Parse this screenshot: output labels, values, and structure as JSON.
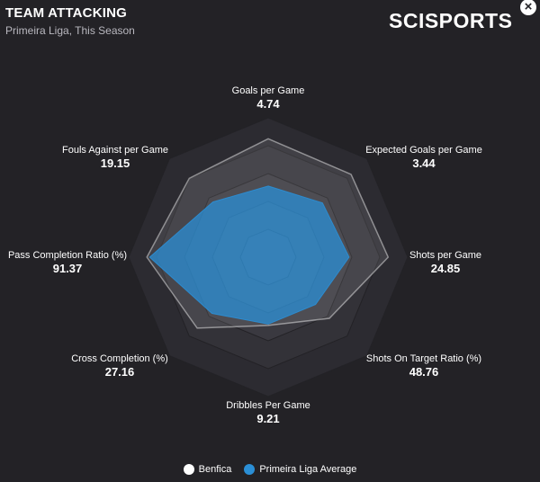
{
  "header": {
    "title": "TEAM ATTACKING",
    "subtitle": "Primeira Liga, This Season",
    "logo": "SCISPORTS",
    "close_icon": "×"
  },
  "chart_data": {
    "type": "radar",
    "axes": [
      {
        "label": "Goals per Game",
        "value": "4.74"
      },
      {
        "label": "Expected Goals per Game",
        "value": "3.44"
      },
      {
        "label": "Shots per Game",
        "value": "24.85"
      },
      {
        "label": "Shots On Target Ratio (%)",
        "value": "48.76"
      },
      {
        "label": "Dribbles Per Game",
        "value": "9.21"
      },
      {
        "label": "Cross Completion (%)",
        "value": "27.16"
      },
      {
        "label": "Pass Completion Ratio (%)",
        "value": "91.37"
      },
      {
        "label": "Fouls Against per Game",
        "value": "19.15"
      }
    ],
    "series": [
      {
        "name": "Benfica",
        "color": "#ffffff",
        "values": [
          0.85,
          0.84,
          0.86,
          0.62,
          0.49,
          0.72,
          0.87,
          0.8
        ]
      },
      {
        "name": "Primeira Liga Average",
        "color": "#2b8fd6",
        "values": [
          0.51,
          0.55,
          0.58,
          0.48,
          0.48,
          0.57,
          0.85,
          0.56
        ]
      }
    ],
    "rings": 5,
    "legend_position": "bottom"
  }
}
